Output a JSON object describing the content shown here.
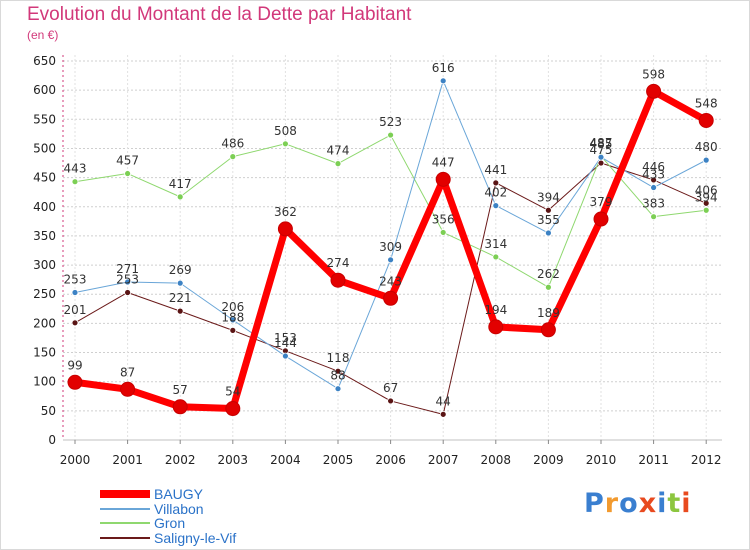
{
  "header": {
    "title": "Evolution du Montant de la Dette par Habitant",
    "subtitle": "(en €)"
  },
  "logo": {
    "text": "Proxiti",
    "colors": [
      "#3a7fd0",
      "#f29a2e",
      "#3a7fd0",
      "#e84a1f",
      "#3a7fd0",
      "#8cc63f",
      "#e84a1f"
    ]
  },
  "chart_data": {
    "type": "line",
    "title": "Evolution du Montant de la Dette par Habitant",
    "subtitle": "(en €)",
    "xlabel": "",
    "ylabel": "",
    "categories": [
      "2000",
      "2001",
      "2002",
      "2003",
      "2004",
      "2005",
      "2006",
      "2007",
      "2008",
      "2009",
      "2010",
      "2011",
      "2012"
    ],
    "ylim": [
      0,
      650
    ],
    "yticks": [
      0,
      50,
      100,
      150,
      200,
      250,
      300,
      350,
      400,
      450,
      500,
      550,
      600,
      650
    ],
    "grid": true,
    "legend_position": "bottom-left",
    "series": [
      {
        "name": "Saligny-le-Vif",
        "color": "#6b1a1a",
        "marker": "#5a1414",
        "width": 1,
        "values": [
          201,
          253,
          221,
          188,
          153,
          118,
          67,
          44,
          441,
          394,
          475,
          446,
          406
        ]
      },
      {
        "name": "Gron",
        "color": "#8fd86f",
        "marker": "#7ccf54",
        "width": 1,
        "values": [
          443,
          457,
          417,
          486,
          508,
          474,
          523,
          356,
          314,
          262,
          487,
          383,
          394
        ]
      },
      {
        "name": "Villabon",
        "color": "#6aa6d8",
        "marker": "#3c82c4",
        "width": 1,
        "values": [
          253,
          271,
          269,
          206,
          144,
          88,
          309,
          616,
          402,
          355,
          485,
          433,
          480
        ]
      },
      {
        "name": "BAUGY",
        "color": "#ff0000",
        "marker": "#e20000",
        "width": 7,
        "values": [
          99,
          87,
          57,
          54,
          362,
          274,
          243,
          447,
          194,
          189,
          379,
          598,
          548
        ]
      }
    ],
    "legend_order": [
      "BAUGY",
      "Villabon",
      "Gron",
      "Saligny-le-Vif"
    ],
    "data_labels": {
      "Saligny-le-Vif": [
        "201",
        "253",
        "221",
        "188",
        "153",
        "118",
        "67",
        "44",
        "441",
        "394",
        "475",
        "446",
        "406"
      ],
      "Gron": [
        "443",
        "457",
        "417",
        "486",
        "508",
        "474",
        "523",
        "356",
        "314",
        "262",
        "487",
        "383",
        "394"
      ],
      "Villabon": [
        "253",
        "271",
        "269",
        "206",
        "144",
        "88",
        "309",
        "616",
        "402",
        "355",
        "485",
        "433",
        "480"
      ],
      "BAUGY": [
        "99",
        "87",
        "57",
        "54",
        "362",
        "274",
        "243",
        "447",
        "194",
        "189",
        "379",
        "598",
        "548"
      ]
    }
  }
}
